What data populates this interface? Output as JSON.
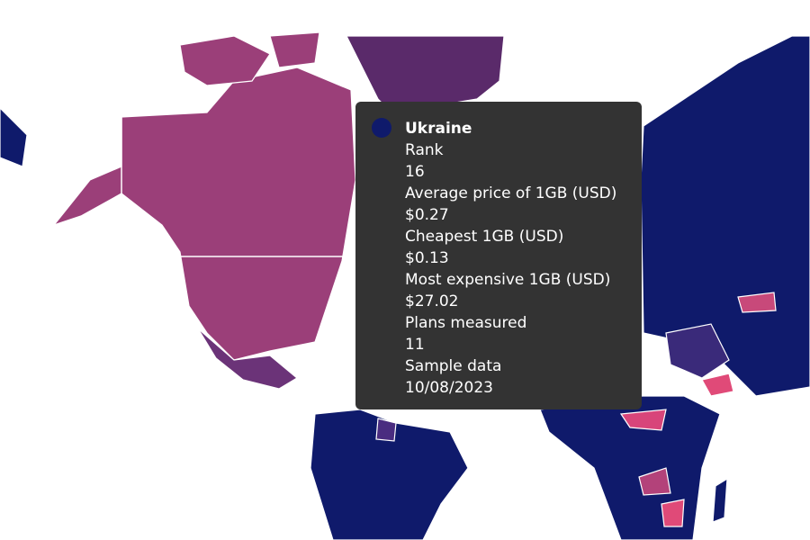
{
  "tooltip": {
    "title": "Ukraine",
    "fields": [
      {
        "label": "Rank",
        "value": "16"
      },
      {
        "label": "Average price of 1GB (USD)",
        "value": "$0.27"
      },
      {
        "label": "Cheapest 1GB (USD)",
        "value": "$0.13"
      },
      {
        "label": "Most expensive 1GB (USD)",
        "value": "$27.02"
      },
      {
        "label": "Plans measured",
        "value": "11"
      },
      {
        "label": "Sample data",
        "value": "10/08/2023"
      }
    ]
  }
}
